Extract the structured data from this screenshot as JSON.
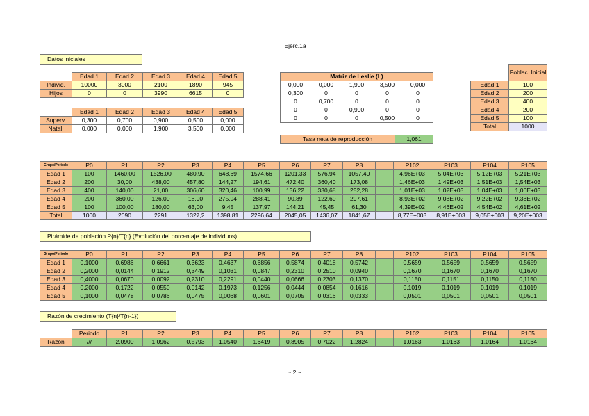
{
  "title": "Ejerc.1a",
  "datos_iniciales": {
    "label": "Datos iniciales",
    "table1": {
      "header": [
        "Edad 1",
        "Edad 2",
        "Edad 3",
        "Edad 4",
        "Edad 5"
      ],
      "rows": [
        {
          "label": "Individ.",
          "cells": [
            "10000",
            "3000",
            "2100",
            "1890",
            "945"
          ]
        },
        {
          "label": "Hijos",
          "cells": [
            "0",
            "0",
            "3990",
            "6615",
            "0"
          ]
        }
      ]
    },
    "table2": {
      "header": [
        "Edad 1",
        "Edad 2",
        "Edad 3",
        "Edad 4",
        "Edad 5"
      ],
      "rows": [
        {
          "label": "Superv.",
          "cells": [
            "0,300",
            "0,700",
            "0,900",
            "0,500",
            "0,000"
          ]
        },
        {
          "label": "Natal.",
          "cells": [
            "0,000",
            "0,000",
            "1,900",
            "3,500",
            "0,000"
          ]
        }
      ]
    }
  },
  "leslie": {
    "title": "Matriz de Leslie (L)",
    "rows": [
      [
        "0,000",
        "0,000",
        "1,900",
        "3,500",
        "0,000"
      ],
      [
        "0,300",
        "0",
        "0",
        "0",
        "0"
      ],
      [
        "0",
        "0,700",
        "0",
        "0",
        "0"
      ],
      [
        "0",
        "0",
        "0,900",
        "0",
        "0"
      ],
      [
        "0",
        "0",
        "0",
        "0,500",
        "0"
      ]
    ]
  },
  "tasa": {
    "label": "Tasa neta de reproducción",
    "value": "1,061"
  },
  "poblacion_inicial": {
    "header": "Poblac. Inicial",
    "rows": [
      [
        "Edad 1",
        "100"
      ],
      [
        "Edad 2",
        "200"
      ],
      [
        "Edad 3",
        "400"
      ],
      [
        "Edad 4",
        "200"
      ],
      [
        "Edad 5",
        "100"
      ],
      [
        "Total",
        "1000"
      ]
    ]
  },
  "poblacion": {
    "corner": "Grupo/Periodo",
    "header": [
      "P0",
      "P1",
      "P2",
      "P3",
      "P4",
      "P5",
      "P6",
      "P7",
      "P8",
      "...",
      "P102",
      "P103",
      "P104",
      "P105"
    ],
    "rows": [
      {
        "label": "Edad 1",
        "cells": [
          "100",
          "1460,00",
          "1526,00",
          "480,90",
          "648,69",
          "1574,66",
          "1201,33",
          "576,94",
          "1057,40",
          "4,96E+03",
          "5,04E+03",
          "5,12E+03",
          "5,21E+03"
        ]
      },
      {
        "label": "Edad 2",
        "cells": [
          "200",
          "30,00",
          "438,00",
          "457,80",
          "144,27",
          "194,61",
          "472,40",
          "360,40",
          "173,08",
          "1,46E+03",
          "1,49E+03",
          "1,51E+03",
          "1,54E+03"
        ]
      },
      {
        "label": "Edad 3",
        "cells": [
          "400",
          "140,00",
          "21,00",
          "306,60",
          "320,46",
          "100,99",
          "136,22",
          "330,68",
          "252,28",
          "1,01E+03",
          "1,02E+03",
          "1,04E+03",
          "1,06E+03"
        ]
      },
      {
        "label": "Edad 4",
        "cells": [
          "200",
          "360,00",
          "126,00",
          "18,90",
          "275,94",
          "288,41",
          "90,89",
          "122,60",
          "297,61",
          "8,93E+02",
          "9,08E+02",
          "9,22E+02",
          "9,38E+02"
        ]
      },
      {
        "label": "Edad 5",
        "cells": [
          "100",
          "100,00",
          "180,00",
          "63,00",
          "9,45",
          "137,97",
          "144,21",
          "45,45",
          "61,30",
          "4,39E+02",
          "4,46E+02",
          "4,54E+02",
          "4,61E+02"
        ]
      },
      {
        "label": "Total",
        "cells": [
          "1000",
          "2090",
          "2291",
          "1327,2",
          "1398,81",
          "2296,64",
          "2045,05",
          "1436,07",
          "1841,67",
          "8,77E+003",
          "8,91E+003",
          "9,05E+003",
          "9,20E+003"
        ]
      }
    ]
  },
  "piramide": {
    "title": "Pirámide de población P{n}/T{n} (Evolución del porcentaje de individuos)",
    "corner": "Grupo/Periodo",
    "header": [
      "P0",
      "P1",
      "P2",
      "P3",
      "P4",
      "P5",
      "P6",
      "P7",
      "P8",
      "...",
      "P102",
      "P103",
      "P104",
      "P105"
    ],
    "rows": [
      {
        "label": "Edad 1",
        "cells": [
          "0,1000",
          "0,6986",
          "0,6661",
          "0,3623",
          "0,4637",
          "0,6856",
          "0,5874",
          "0,4018",
          "0,5742",
          "0,5659",
          "0,5659",
          "0,5659",
          "0,5659"
        ]
      },
      {
        "label": "Edad 2",
        "cells": [
          "0,2000",
          "0,0144",
          "0,1912",
          "0,3449",
          "0,1031",
          "0,0847",
          "0,2310",
          "0,2510",
          "0,0940",
          "0,1670",
          "0,1670",
          "0,1670",
          "0,1670"
        ]
      },
      {
        "label": "Edad 3",
        "cells": [
          "0,4000",
          "0,0670",
          "0,0092",
          "0,2310",
          "0,2291",
          "0,0440",
          "0,0666",
          "0,2303",
          "0,1370",
          "0,1150",
          "0,1151",
          "0,1150",
          "0,1150"
        ]
      },
      {
        "label": "Edad 4",
        "cells": [
          "0,2000",
          "0,1722",
          "0,0550",
          "0,0142",
          "0,1973",
          "0,1256",
          "0,0444",
          "0,0854",
          "0,1616",
          "0,1019",
          "0,1019",
          "0,1019",
          "0,1019"
        ]
      },
      {
        "label": "Edad 5",
        "cells": [
          "0,1000",
          "0,0478",
          "0,0786",
          "0,0475",
          "0,0068",
          "0,0601",
          "0,0705",
          "0,0316",
          "0,0333",
          "0,0501",
          "0,0501",
          "0,0501",
          "0,0501"
        ]
      }
    ]
  },
  "razon": {
    "title": "Razón de crecimiento (T{n}/T{n-1})",
    "header": [
      "Periodo",
      "P1",
      "P2",
      "P3",
      "P4",
      "P5",
      "P6",
      "P7",
      "P8",
      "...",
      "P102",
      "P103",
      "P104",
      "P105"
    ],
    "rows": [
      {
        "label": "Razón",
        "cells": [
          "///",
          "2,0900",
          "1,0962",
          "0,5793",
          "1,0540",
          "1,6419",
          "0,8905",
          "0,7022",
          "1,2824",
          "1,0163",
          "1,0163",
          "1,0164",
          "1,0164"
        ]
      }
    ]
  },
  "footer": "~ 2 ~"
}
